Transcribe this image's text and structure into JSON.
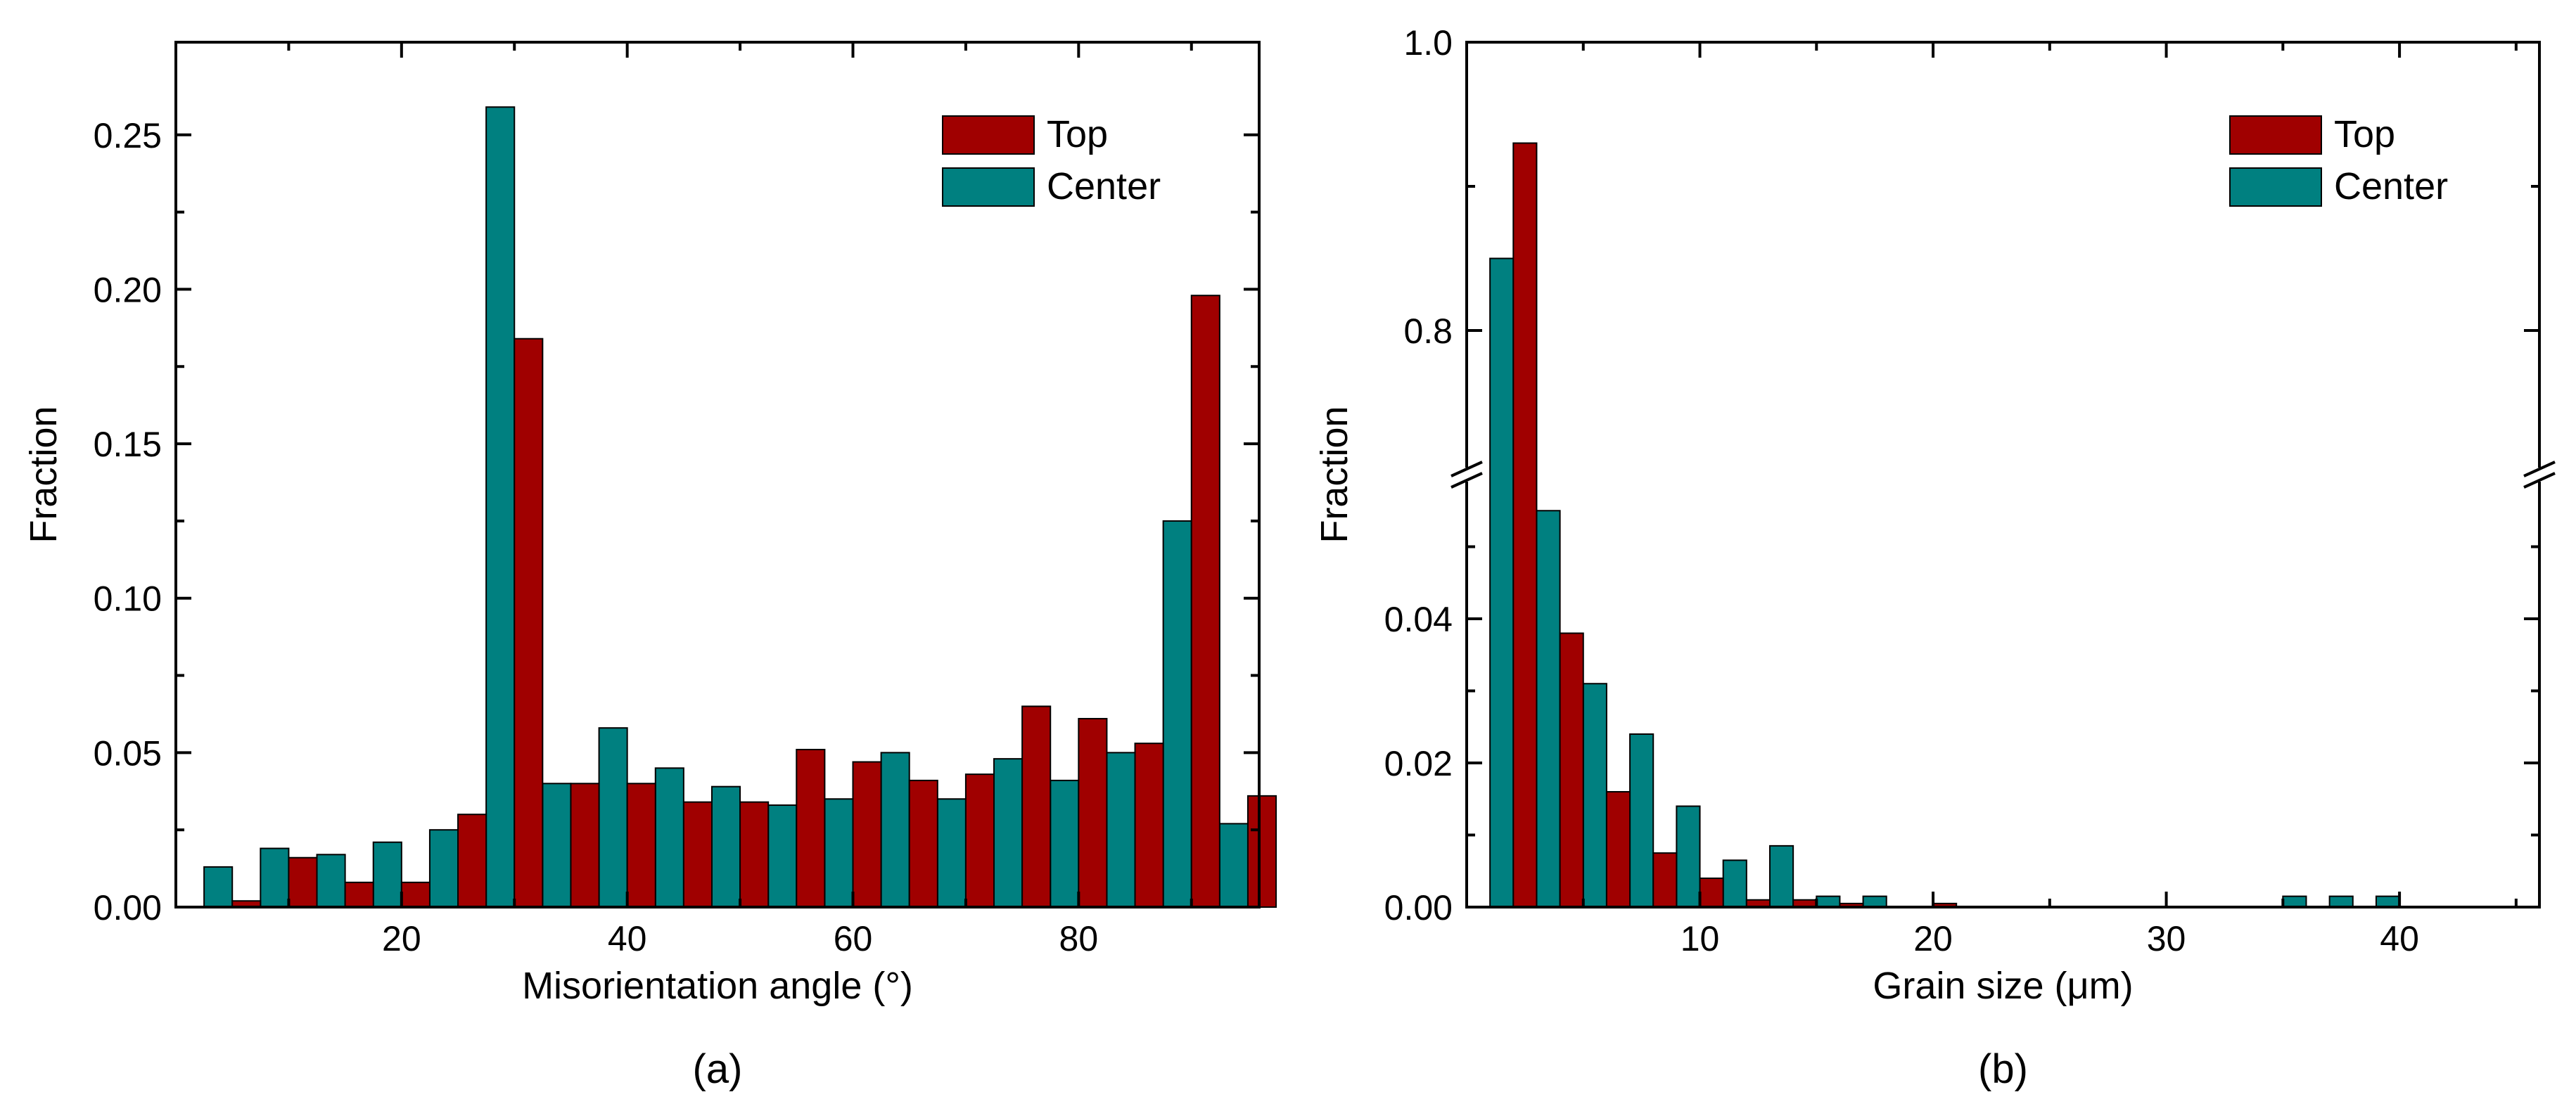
{
  "colors": {
    "top": "#a00000",
    "center": "#008080"
  },
  "chart_data": [
    {
      "type": "bar",
      "panel_label": "(a)",
      "xlabel": "Misorientation angle (°)",
      "ylabel": "Fraction",
      "xlim": [
        0,
        96
      ],
      "ylim": [
        0,
        0.28
      ],
      "xticks": [
        20,
        40,
        60,
        80
      ],
      "xtick_labels": [
        "20",
        "40",
        "60",
        "80"
      ],
      "yticks": [
        0,
        0.05,
        0.1,
        0.15,
        0.2,
        0.25
      ],
      "ytick_labels": [
        "0.00",
        "0.05",
        "0.10",
        "0.15",
        "0.20",
        "0.25"
      ],
      "bin_width": 5,
      "bin_centers": [
        5,
        10,
        15,
        20,
        25,
        30,
        35,
        40,
        45,
        50,
        55,
        60,
        65,
        70,
        75,
        80,
        85,
        90,
        95
      ],
      "legend": {
        "placement": "top-right",
        "entries": [
          "Top",
          "Center"
        ]
      },
      "series": [
        {
          "name": "Center",
          "values": [
            0.013,
            0.019,
            0.017,
            0.021,
            0.025,
            0.259,
            0.04,
            0.058,
            0.045,
            0.039,
            0.033,
            0.035,
            0.05,
            0.035,
            0.048,
            0.041,
            0.05,
            0.125,
            0.027
          ]
        },
        {
          "name": "Top",
          "values": [
            0.002,
            0.016,
            0.008,
            0.008,
            0.03,
            0.184,
            0.04,
            0.04,
            0.034,
            0.034,
            0.051,
            0.047,
            0.041,
            0.043,
            0.065,
            0.061,
            0.053,
            0.198,
            0.036
          ]
        }
      ]
    },
    {
      "type": "bar",
      "panel_label": "(b)",
      "xlabel": "Grain size (μm)",
      "ylabel": "Fraction",
      "xlim": [
        0,
        46
      ],
      "broken_y_axis": true,
      "ylim_lower": [
        0,
        0.06
      ],
      "ylim_upper": [
        0.7,
        1.0
      ],
      "xticks": [
        10,
        20,
        30,
        40
      ],
      "xtick_labels": [
        "10",
        "20",
        "30",
        "40"
      ],
      "yticks_lower": [
        0,
        0.02,
        0.04
      ],
      "ytick_labels_lower": [
        "0.00",
        "0.02",
        "0.04"
      ],
      "yticks_upper": [
        0.8,
        1.0
      ],
      "ytick_labels_upper": [
        "0.8",
        "1.0"
      ],
      "bin_width": 2,
      "bin_centers": [
        2,
        4,
        6,
        8,
        10,
        12,
        14,
        16,
        18,
        20,
        22,
        24,
        26,
        28,
        30,
        32,
        34,
        36,
        38,
        40,
        42
      ],
      "legend": {
        "placement": "top-right",
        "entries": [
          "Top",
          "Center"
        ]
      },
      "series": [
        {
          "name": "Center",
          "values": [
            0.85,
            0.055,
            0.031,
            0.024,
            0.014,
            0.0065,
            0.0085,
            0.0015,
            0.0015,
            0,
            0,
            0,
            0,
            0,
            0,
            0,
            0,
            0.0015,
            0.0015,
            0.0015,
            0
          ]
        },
        {
          "name": "Top",
          "values": [
            0.93,
            0.038,
            0.016,
            0.0075,
            0.004,
            0.001,
            0.001,
            0.0005,
            0,
            0.0005,
            0,
            0,
            0,
            0,
            0,
            0,
            0,
            0,
            0,
            0,
            0
          ]
        }
      ]
    }
  ]
}
